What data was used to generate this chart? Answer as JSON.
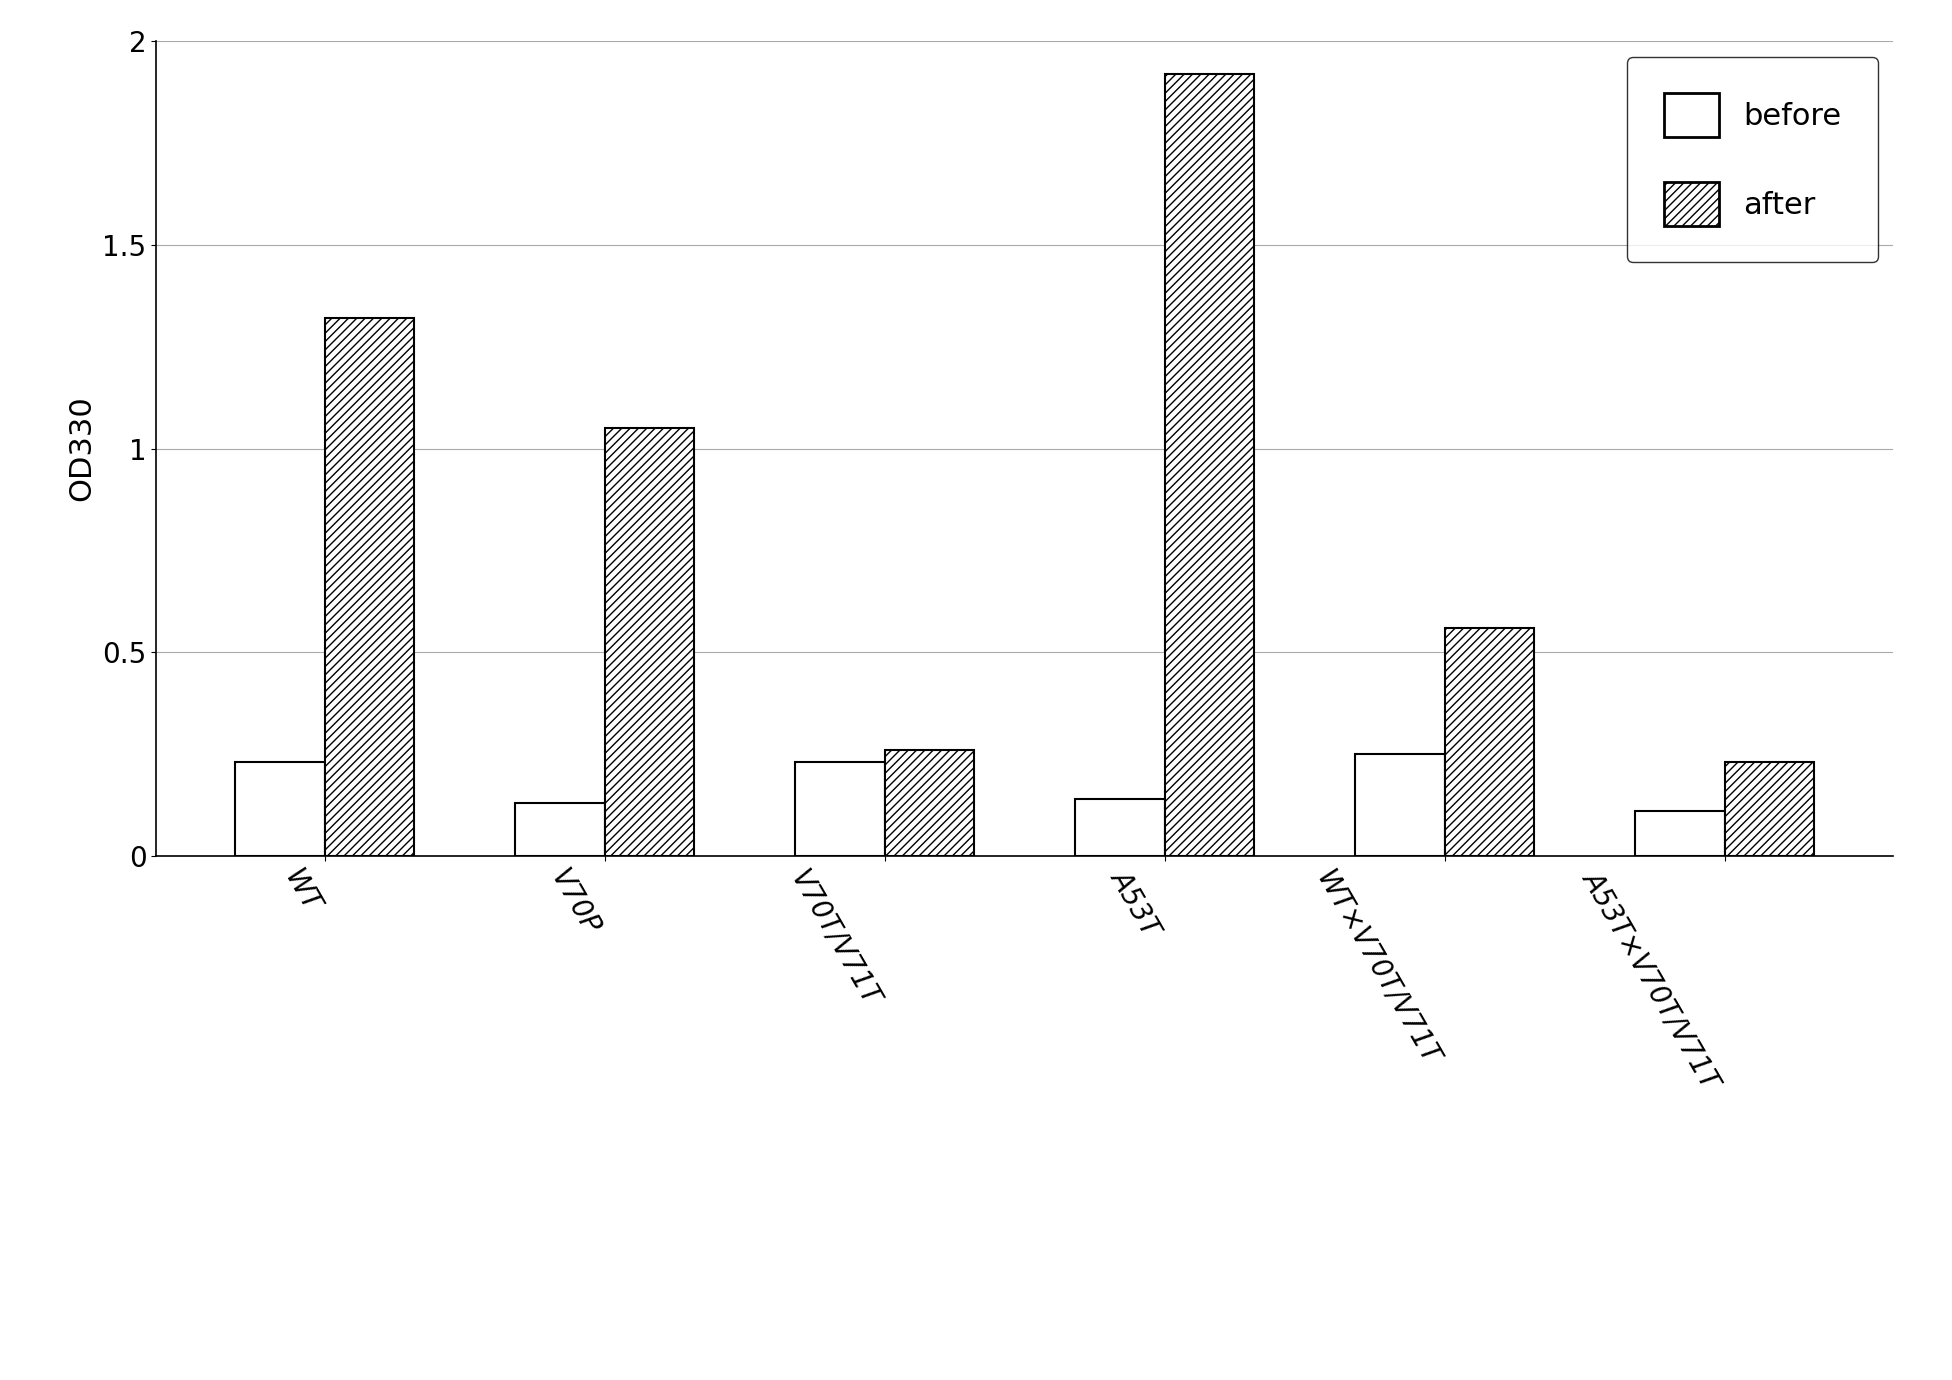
{
  "categories": [
    "WT",
    "V70P",
    "V70T/V71T",
    "A53T",
    "WT×V70T/V71T",
    "A53T×V70T/V71T"
  ],
  "before_values": [
    0.23,
    0.13,
    0.23,
    0.14,
    0.25,
    0.11
  ],
  "after_values": [
    1.32,
    1.05,
    0.26,
    1.92,
    0.56,
    0.23
  ],
  "ylabel": "OD330",
  "ylim": [
    0,
    2.0
  ],
  "yticks": [
    0,
    0.5,
    1.0,
    1.5,
    2.0
  ],
  "ytick_labels": [
    "0",
    "0.5",
    "1",
    "1.5",
    "2"
  ],
  "bar_width": 0.32,
  "before_color": "#ffffff",
  "before_edgecolor": "#000000",
  "after_edgecolor": "#000000",
  "hatch_pattern": "////",
  "legend_labels": [
    "before",
    "after"
  ],
  "background_color": "#ffffff",
  "grid_color": "#aaaaaa",
  "label_fontsize": 22,
  "tick_fontsize": 20,
  "legend_fontsize": 22,
  "xlabel_rotation": -60
}
